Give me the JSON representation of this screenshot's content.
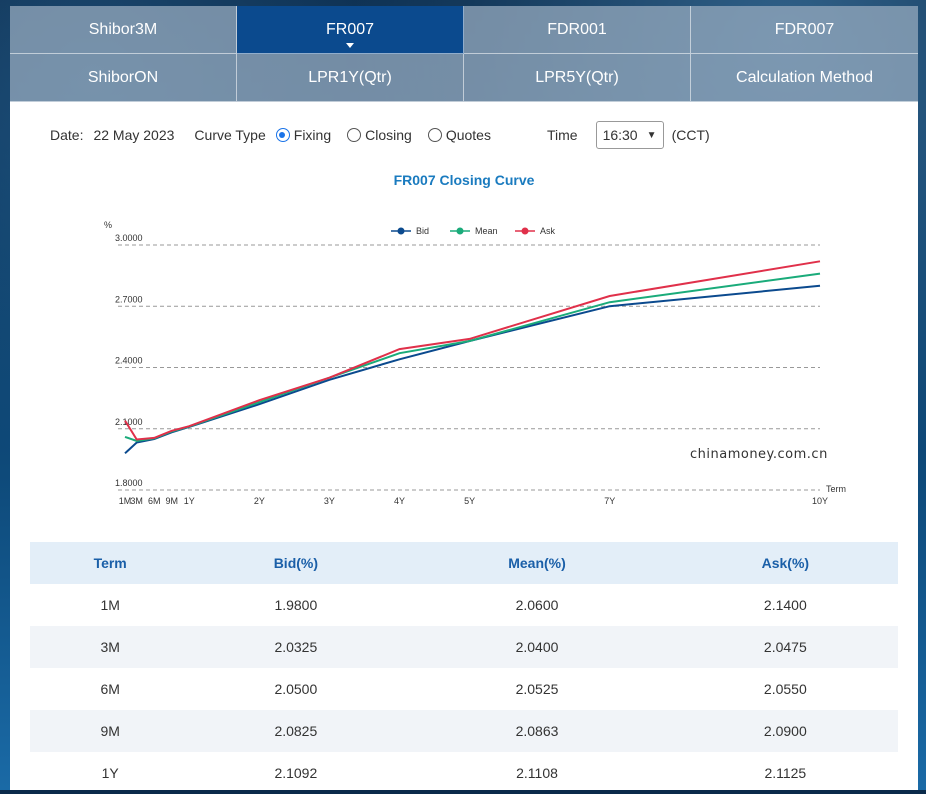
{
  "tabs": [
    {
      "label": "Shibor3M",
      "active": false
    },
    {
      "label": "FR007",
      "active": true
    },
    {
      "label": "FDR001",
      "active": false
    },
    {
      "label": "FDR007",
      "active": false
    },
    {
      "label": "ShiborON",
      "active": false
    },
    {
      "label": "LPR1Y(Qtr)",
      "active": false
    },
    {
      "label": "LPR5Y(Qtr)",
      "active": false
    },
    {
      "label": "Calculation Method",
      "active": false
    }
  ],
  "controls": {
    "date_label": "Date:",
    "date_value": "22 May 2023",
    "curve_type_label": "Curve Type",
    "curve_options": [
      {
        "label": "Fixing",
        "checked": true
      },
      {
        "label": "Closing",
        "checked": false
      },
      {
        "label": "Quotes",
        "checked": false
      }
    ],
    "time_label": "Time",
    "time_value": "16:30",
    "timezone": "(CCT)"
  },
  "chart_title": "FR007 Closing Curve",
  "chart_data": {
    "type": "line",
    "title": "FR007 Closing Curve",
    "ylabel": "%",
    "xlabel": "Term",
    "ylim": [
      1.8,
      3.0
    ],
    "yticks": [
      "3.0000",
      "2.7000",
      "2.4000",
      "2.1000",
      "1.8000"
    ],
    "categories": [
      "1M",
      "3M",
      "6M",
      "9M",
      "1Y",
      "2Y",
      "3Y",
      "4Y",
      "5Y",
      "7Y",
      "10Y"
    ],
    "x_years": [
      0.0833,
      0.25,
      0.5,
      0.75,
      1,
      2,
      3,
      4,
      5,
      7,
      10
    ],
    "series": [
      {
        "name": "Bid",
        "color": "#0b4a8e",
        "values": [
          1.98,
          2.0325,
          2.05,
          2.0825,
          2.1092,
          2.22,
          2.34,
          2.44,
          2.53,
          2.7,
          2.8
        ]
      },
      {
        "name": "Mean",
        "color": "#1aab7a",
        "values": [
          2.06,
          2.04,
          2.0525,
          2.0863,
          2.1108,
          2.23,
          2.35,
          2.47,
          2.53,
          2.72,
          2.86
        ]
      },
      {
        "name": "Ask",
        "color": "#e0304a",
        "values": [
          2.14,
          2.0475,
          2.055,
          2.09,
          2.1125,
          2.24,
          2.35,
          2.49,
          2.54,
          2.75,
          2.92
        ]
      }
    ],
    "legend_position": "top",
    "grid": true,
    "watermark": "chinamoney.com.cn"
  },
  "table": {
    "headers": [
      "Term",
      "Bid(%)",
      "Mean(%)",
      "Ask(%)"
    ],
    "rows": [
      [
        "1M",
        "1.9800",
        "2.0600",
        "2.1400"
      ],
      [
        "3M",
        "2.0325",
        "2.0400",
        "2.0475"
      ],
      [
        "6M",
        "2.0500",
        "2.0525",
        "2.0550"
      ],
      [
        "9M",
        "2.0825",
        "2.0863",
        "2.0900"
      ],
      [
        "1Y",
        "2.1092",
        "2.1108",
        "2.1125"
      ]
    ]
  }
}
